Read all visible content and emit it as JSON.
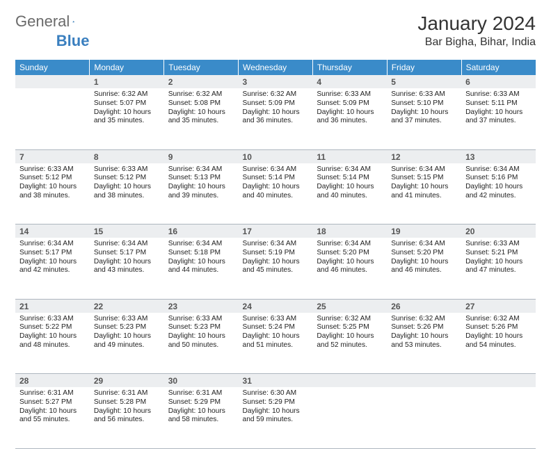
{
  "brand": {
    "part1": "General",
    "part2": "Blue"
  },
  "title": "January 2024",
  "location": "Bar Bigha, Bihar, India",
  "colors": {
    "header_bg": "#3a8bc9",
    "header_text": "#ffffff",
    "daynum_bg": "#eceef0",
    "daynum_text": "#555555",
    "body_text": "#222222",
    "row_border": "#aeb6bf",
    "page_bg": "#ffffff",
    "logo_gray": "#6a6a6a",
    "logo_blue": "#3a7fbf"
  },
  "typography": {
    "title_fontsize": 28,
    "location_fontsize": 16,
    "weekday_fontsize": 12,
    "daynum_fontsize": 12,
    "cell_fontsize": 10.2
  },
  "weekdays": [
    "Sunday",
    "Monday",
    "Tuesday",
    "Wednesday",
    "Thursday",
    "Friday",
    "Saturday"
  ],
  "weeks": [
    [
      null,
      {
        "n": "1",
        "sunrise": "Sunrise: 6:32 AM",
        "sunset": "Sunset: 5:07 PM",
        "day1": "Daylight: 10 hours",
        "day2": "and 35 minutes."
      },
      {
        "n": "2",
        "sunrise": "Sunrise: 6:32 AM",
        "sunset": "Sunset: 5:08 PM",
        "day1": "Daylight: 10 hours",
        "day2": "and 35 minutes."
      },
      {
        "n": "3",
        "sunrise": "Sunrise: 6:32 AM",
        "sunset": "Sunset: 5:09 PM",
        "day1": "Daylight: 10 hours",
        "day2": "and 36 minutes."
      },
      {
        "n": "4",
        "sunrise": "Sunrise: 6:33 AM",
        "sunset": "Sunset: 5:09 PM",
        "day1": "Daylight: 10 hours",
        "day2": "and 36 minutes."
      },
      {
        "n": "5",
        "sunrise": "Sunrise: 6:33 AM",
        "sunset": "Sunset: 5:10 PM",
        "day1": "Daylight: 10 hours",
        "day2": "and 37 minutes."
      },
      {
        "n": "6",
        "sunrise": "Sunrise: 6:33 AM",
        "sunset": "Sunset: 5:11 PM",
        "day1": "Daylight: 10 hours",
        "day2": "and 37 minutes."
      }
    ],
    [
      {
        "n": "7",
        "sunrise": "Sunrise: 6:33 AM",
        "sunset": "Sunset: 5:12 PM",
        "day1": "Daylight: 10 hours",
        "day2": "and 38 minutes."
      },
      {
        "n": "8",
        "sunrise": "Sunrise: 6:33 AM",
        "sunset": "Sunset: 5:12 PM",
        "day1": "Daylight: 10 hours",
        "day2": "and 38 minutes."
      },
      {
        "n": "9",
        "sunrise": "Sunrise: 6:34 AM",
        "sunset": "Sunset: 5:13 PM",
        "day1": "Daylight: 10 hours",
        "day2": "and 39 minutes."
      },
      {
        "n": "10",
        "sunrise": "Sunrise: 6:34 AM",
        "sunset": "Sunset: 5:14 PM",
        "day1": "Daylight: 10 hours",
        "day2": "and 40 minutes."
      },
      {
        "n": "11",
        "sunrise": "Sunrise: 6:34 AM",
        "sunset": "Sunset: 5:14 PM",
        "day1": "Daylight: 10 hours",
        "day2": "and 40 minutes."
      },
      {
        "n": "12",
        "sunrise": "Sunrise: 6:34 AM",
        "sunset": "Sunset: 5:15 PM",
        "day1": "Daylight: 10 hours",
        "day2": "and 41 minutes."
      },
      {
        "n": "13",
        "sunrise": "Sunrise: 6:34 AM",
        "sunset": "Sunset: 5:16 PM",
        "day1": "Daylight: 10 hours",
        "day2": "and 42 minutes."
      }
    ],
    [
      {
        "n": "14",
        "sunrise": "Sunrise: 6:34 AM",
        "sunset": "Sunset: 5:17 PM",
        "day1": "Daylight: 10 hours",
        "day2": "and 42 minutes."
      },
      {
        "n": "15",
        "sunrise": "Sunrise: 6:34 AM",
        "sunset": "Sunset: 5:17 PM",
        "day1": "Daylight: 10 hours",
        "day2": "and 43 minutes."
      },
      {
        "n": "16",
        "sunrise": "Sunrise: 6:34 AM",
        "sunset": "Sunset: 5:18 PM",
        "day1": "Daylight: 10 hours",
        "day2": "and 44 minutes."
      },
      {
        "n": "17",
        "sunrise": "Sunrise: 6:34 AM",
        "sunset": "Sunset: 5:19 PM",
        "day1": "Daylight: 10 hours",
        "day2": "and 45 minutes."
      },
      {
        "n": "18",
        "sunrise": "Sunrise: 6:34 AM",
        "sunset": "Sunset: 5:20 PM",
        "day1": "Daylight: 10 hours",
        "day2": "and 46 minutes."
      },
      {
        "n": "19",
        "sunrise": "Sunrise: 6:34 AM",
        "sunset": "Sunset: 5:20 PM",
        "day1": "Daylight: 10 hours",
        "day2": "and 46 minutes."
      },
      {
        "n": "20",
        "sunrise": "Sunrise: 6:33 AM",
        "sunset": "Sunset: 5:21 PM",
        "day1": "Daylight: 10 hours",
        "day2": "and 47 minutes."
      }
    ],
    [
      {
        "n": "21",
        "sunrise": "Sunrise: 6:33 AM",
        "sunset": "Sunset: 5:22 PM",
        "day1": "Daylight: 10 hours",
        "day2": "and 48 minutes."
      },
      {
        "n": "22",
        "sunrise": "Sunrise: 6:33 AM",
        "sunset": "Sunset: 5:23 PM",
        "day1": "Daylight: 10 hours",
        "day2": "and 49 minutes."
      },
      {
        "n": "23",
        "sunrise": "Sunrise: 6:33 AM",
        "sunset": "Sunset: 5:23 PM",
        "day1": "Daylight: 10 hours",
        "day2": "and 50 minutes."
      },
      {
        "n": "24",
        "sunrise": "Sunrise: 6:33 AM",
        "sunset": "Sunset: 5:24 PM",
        "day1": "Daylight: 10 hours",
        "day2": "and 51 minutes."
      },
      {
        "n": "25",
        "sunrise": "Sunrise: 6:32 AM",
        "sunset": "Sunset: 5:25 PM",
        "day1": "Daylight: 10 hours",
        "day2": "and 52 minutes."
      },
      {
        "n": "26",
        "sunrise": "Sunrise: 6:32 AM",
        "sunset": "Sunset: 5:26 PM",
        "day1": "Daylight: 10 hours",
        "day2": "and 53 minutes."
      },
      {
        "n": "27",
        "sunrise": "Sunrise: 6:32 AM",
        "sunset": "Sunset: 5:26 PM",
        "day1": "Daylight: 10 hours",
        "day2": "and 54 minutes."
      }
    ],
    [
      {
        "n": "28",
        "sunrise": "Sunrise: 6:31 AM",
        "sunset": "Sunset: 5:27 PM",
        "day1": "Daylight: 10 hours",
        "day2": "and 55 minutes."
      },
      {
        "n": "29",
        "sunrise": "Sunrise: 6:31 AM",
        "sunset": "Sunset: 5:28 PM",
        "day1": "Daylight: 10 hours",
        "day2": "and 56 minutes."
      },
      {
        "n": "30",
        "sunrise": "Sunrise: 6:31 AM",
        "sunset": "Sunset: 5:29 PM",
        "day1": "Daylight: 10 hours",
        "day2": "and 58 minutes."
      },
      {
        "n": "31",
        "sunrise": "Sunrise: 6:30 AM",
        "sunset": "Sunset: 5:29 PM",
        "day1": "Daylight: 10 hours",
        "day2": "and 59 minutes."
      },
      null,
      null,
      null
    ]
  ]
}
